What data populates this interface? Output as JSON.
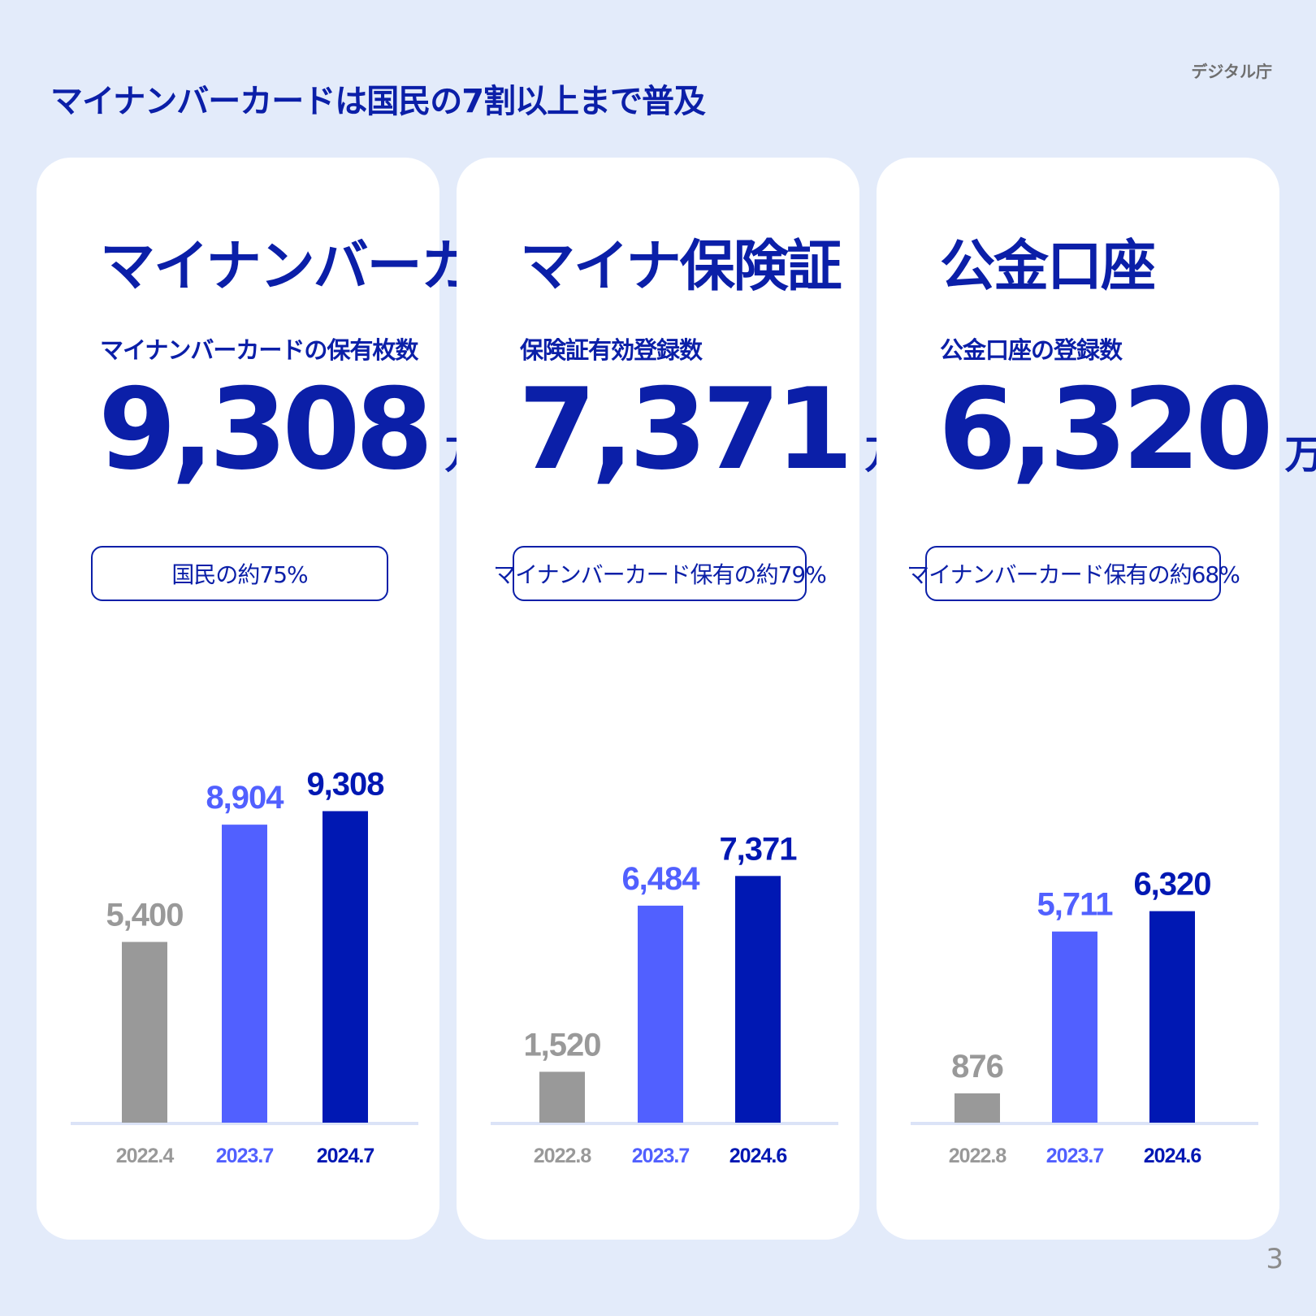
{
  "header": {
    "title": "マイナンバーカードは国民の7割以上まで普及",
    "org": "デジタル庁"
  },
  "page_number": "3",
  "colors": {
    "old": "#999999",
    "mid": "#5160ff",
    "latest": "#0018b3",
    "baseline": "#dbe3f7"
  },
  "cards": [
    {
      "title": "マイナンバーカード",
      "subtitle": "マイナンバーカードの保有枚数",
      "value": "9,308",
      "unit": "万枚",
      "badge": "国民の約75%"
    },
    {
      "title": "マイナ保険証",
      "subtitle": "保険証有効登録数",
      "value": "7,371",
      "unit": "万件",
      "badge": "マイナンバーカード保有の約79%"
    },
    {
      "title": "公金口座",
      "subtitle": "公金口座の登録数",
      "value": "6,320",
      "unit": "万件",
      "badge": "マイナンバーカード保有の約68%"
    }
  ],
  "chart_data": [
    {
      "type": "bar",
      "categories": [
        "2022.4",
        "2023.7",
        "2024.7"
      ],
      "values": [
        5400,
        8904,
        9308
      ],
      "labels": [
        "5,400",
        "8,904",
        "9,308"
      ]
    },
    {
      "type": "bar",
      "categories": [
        "2022.8",
        "2023.7",
        "2024.6"
      ],
      "values": [
        1520,
        6484,
        7371
      ],
      "labels": [
        "1,520",
        "6,484",
        "7,371"
      ]
    },
    {
      "type": "bar",
      "categories": [
        "2022.8",
        "2023.7",
        "2024.6"
      ],
      "values": [
        876,
        5711,
        6320
      ],
      "labels": [
        "876",
        "5,711",
        "6,320"
      ]
    }
  ]
}
